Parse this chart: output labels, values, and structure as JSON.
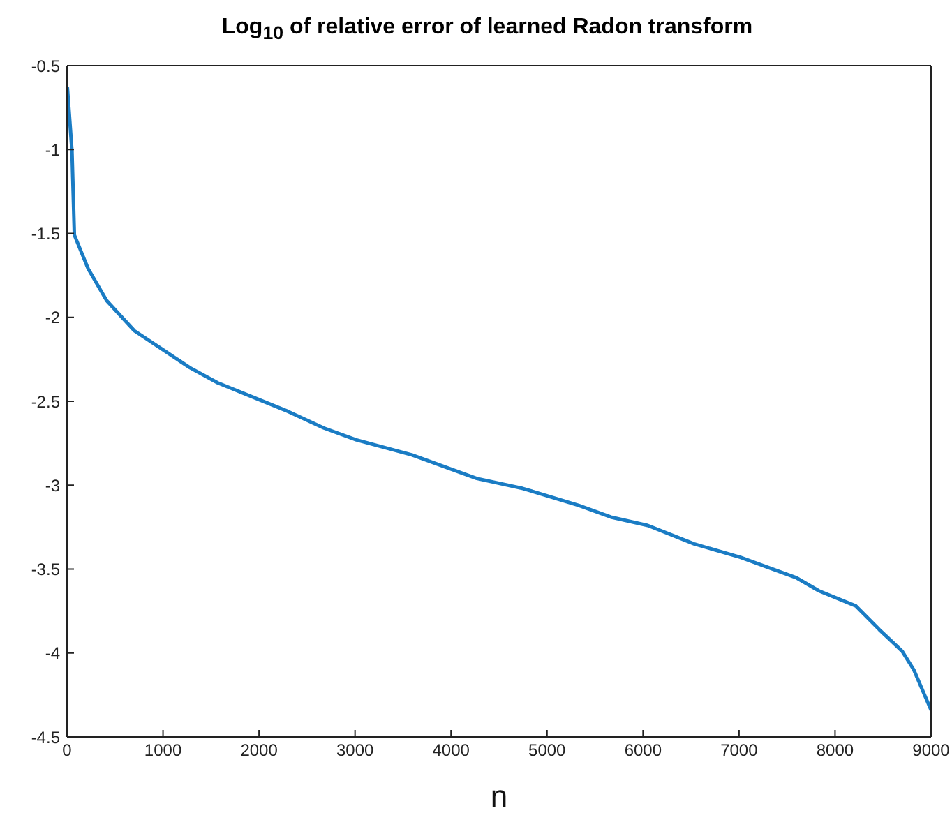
{
  "chart_data": {
    "type": "line",
    "title": "Log$_{10}$ of relative error of learned Radon transform",
    "xlabel": "n",
    "x": [
      4,
      52,
      77,
      220,
      413,
      702,
      991,
      1280,
      1569,
      2000,
      2300,
      2678,
      3015,
      3593,
      4268,
      4750,
      5328,
      5665,
      6050,
      6532,
      7014,
      7592,
      7833,
      8218,
      8460,
      8700,
      8820,
      9000
    ],
    "series": [
      {
        "color": "#1a7cc4",
        "values": [
          -0.63,
          -1.01,
          -1.51,
          -1.71,
          -1.9,
          -2.08,
          -2.19,
          -2.3,
          -2.39,
          -2.49,
          -2.56,
          -2.66,
          -2.73,
          -2.82,
          -2.96,
          -3.02,
          -3.12,
          -3.19,
          -3.24,
          -3.35,
          -3.43,
          -3.55,
          -3.63,
          -3.72,
          -3.86,
          -3.99,
          -4.1,
          -4.34
        ]
      }
    ],
    "xlim": [
      0,
      9000
    ],
    "xticks": [
      0,
      1000,
      2000,
      3000,
      4000,
      5000,
      6000,
      7000,
      8000,
      9000
    ],
    "ylim": [
      -4.5,
      -0.5
    ],
    "yticks": [
      -4.5,
      -4,
      -3.5,
      -3,
      -2.5,
      -2,
      -1.5,
      -1,
      -0.5
    ],
    "grid": false,
    "legend": false,
    "marker": "none",
    "line_style": "solid"
  }
}
